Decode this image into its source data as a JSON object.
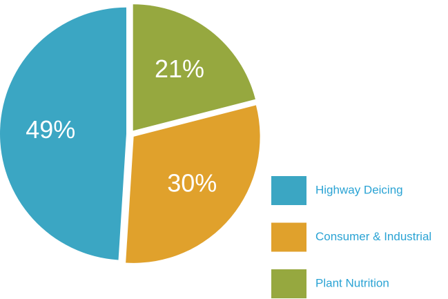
{
  "chart_data": {
    "type": "pie",
    "categories": [
      "Highway Deicing",
      "Consumer & Industrial",
      "Plant Nutrition"
    ],
    "values": [
      49,
      30,
      21
    ],
    "value_labels": [
      "49%",
      "30%",
      "21%"
    ],
    "colors": [
      "#3ba6c3",
      "#e0a12c",
      "#96a83f"
    ],
    "legend": "right"
  }
}
